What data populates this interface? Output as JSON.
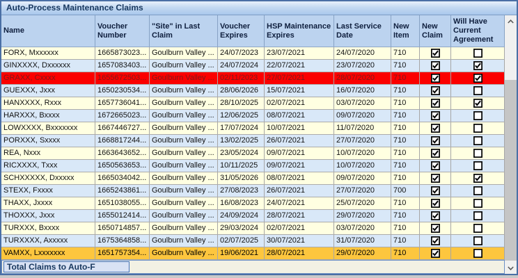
{
  "title": "Auto-Process Maintenance Claims",
  "colors": {
    "header_bg": "#BCD3EF",
    "row_yellow": "#FFFFE1",
    "row_blue": "#D9E8F8",
    "row_red": "#FB0000",
    "row_red_text": "#7E1A1A",
    "row_orange": "#FDC63E",
    "row_orange_text": "#000000"
  },
  "table": {
    "columns": [
      {
        "key": "name",
        "label": "Name"
      },
      {
        "key": "voucher_number",
        "label": "Voucher Number"
      },
      {
        "key": "site",
        "label": "\"Site\" in Last Claim"
      },
      {
        "key": "voucher_expires",
        "label": "Voucher Expires"
      },
      {
        "key": "hsp_expires",
        "label": "HSP Maintenance Expires"
      },
      {
        "key": "last_service",
        "label": "Last Service Date"
      },
      {
        "key": "new_item",
        "label": "New Item"
      },
      {
        "key": "new_claim",
        "label": "New Claim"
      },
      {
        "key": "will_have_agreement",
        "label": "Will Have Current Agreement"
      }
    ],
    "rows": [
      {
        "name": "FORX, Mxxxxxx",
        "voucher_number": "1665873023...",
        "site": "Goulburn Valley ...",
        "voucher_expires": "24/07/2023",
        "hsp_expires": "23/07/2021",
        "last_service": "24/07/2020",
        "new_item": "710",
        "new_claim": true,
        "will_have_agreement": false,
        "highlight": ""
      },
      {
        "name": "GINXXXX, Dxxxxxx",
        "voucher_number": "1657083403...",
        "site": "Goulburn Valley ...",
        "voucher_expires": "24/07/2024",
        "hsp_expires": "22/07/2021",
        "last_service": "23/07/2020",
        "new_item": "710",
        "new_claim": true,
        "will_have_agreement": true,
        "highlight": ""
      },
      {
        "name": "GRAXX, Cxxxx",
        "voucher_number": "1655672503...",
        "site": "Goulburn Valley ...",
        "voucher_expires": "02/11/2023",
        "hsp_expires": "27/07/2021",
        "last_service": "28/07/2020",
        "new_item": "710",
        "new_claim": true,
        "will_have_agreement": true,
        "highlight": "red"
      },
      {
        "name": "GUEXXX, Jxxx",
        "voucher_number": "1650230534...",
        "site": "Goulburn Valley ...",
        "voucher_expires": "28/06/2026",
        "hsp_expires": "15/07/2021",
        "last_service": "16/07/2020",
        "new_item": "710",
        "new_claim": true,
        "will_have_agreement": false,
        "highlight": ""
      },
      {
        "name": "HANXXXX, Rxxx",
        "voucher_number": "1657736041...",
        "site": "Goulburn Valley ...",
        "voucher_expires": "28/10/2025",
        "hsp_expires": "02/07/2021",
        "last_service": "03/07/2020",
        "new_item": "710",
        "new_claim": true,
        "will_have_agreement": true,
        "highlight": ""
      },
      {
        "name": "HARXXX, Bxxxx",
        "voucher_number": "1672665023...",
        "site": "Goulburn Valley ...",
        "voucher_expires": "12/06/2025",
        "hsp_expires": "08/07/2021",
        "last_service": "09/07/2020",
        "new_item": "710",
        "new_claim": true,
        "will_have_agreement": false,
        "highlight": ""
      },
      {
        "name": "LOWXXXX, Bxxxxxxx",
        "voucher_number": "1667446727...",
        "site": "Goulburn Valley ...",
        "voucher_expires": "17/07/2024",
        "hsp_expires": "10/07/2021",
        "last_service": "11/07/2020",
        "new_item": "710",
        "new_claim": true,
        "will_have_agreement": false,
        "highlight": ""
      },
      {
        "name": "PORXXX, Sxxxx",
        "voucher_number": "1668817244...",
        "site": "Goulburn Valley ...",
        "voucher_expires": "13/02/2025",
        "hsp_expires": "26/07/2021",
        "last_service": "27/07/2020",
        "new_item": "710",
        "new_claim": true,
        "will_have_agreement": false,
        "highlight": ""
      },
      {
        "name": "REA, Nxxx",
        "voucher_number": "1663643652...",
        "site": "Goulburn Valley ...",
        "voucher_expires": "23/05/2024",
        "hsp_expires": "09/07/2021",
        "last_service": "10/07/2020",
        "new_item": "710",
        "new_claim": true,
        "will_have_agreement": false,
        "highlight": ""
      },
      {
        "name": "RICXXXX, Txxx",
        "voucher_number": "1650563653...",
        "site": "Goulburn Valley ...",
        "voucher_expires": "10/11/2025",
        "hsp_expires": "09/07/2021",
        "last_service": "10/07/2020",
        "new_item": "710",
        "new_claim": true,
        "will_have_agreement": false,
        "highlight": ""
      },
      {
        "name": "SCHXXXXX, Dxxxxx",
        "voucher_number": "1665034042...",
        "site": "Goulburn Valley ...",
        "voucher_expires": "31/05/2026",
        "hsp_expires": "08/07/2021",
        "last_service": "09/07/2020",
        "new_item": "710",
        "new_claim": true,
        "will_have_agreement": true,
        "highlight": ""
      },
      {
        "name": "STEXX, Fxxxx",
        "voucher_number": "1665243861...",
        "site": "Goulburn Valley ...",
        "voucher_expires": "27/08/2023",
        "hsp_expires": "26/07/2021",
        "last_service": "27/07/2020",
        "new_item": "700",
        "new_claim": true,
        "will_have_agreement": false,
        "highlight": ""
      },
      {
        "name": "THAXX, Jxxxx",
        "voucher_number": "1651038055...",
        "site": "Goulburn Valley ...",
        "voucher_expires": "16/08/2023",
        "hsp_expires": "24/07/2021",
        "last_service": "25/07/2020",
        "new_item": "710",
        "new_claim": true,
        "will_have_agreement": false,
        "highlight": ""
      },
      {
        "name": "THOXXX, Jxxx",
        "voucher_number": "1655012414...",
        "site": "Goulburn Valley ...",
        "voucher_expires": "24/09/2024",
        "hsp_expires": "28/07/2021",
        "last_service": "29/07/2020",
        "new_item": "710",
        "new_claim": true,
        "will_have_agreement": false,
        "highlight": ""
      },
      {
        "name": "TURXXX, Bxxxx",
        "voucher_number": "1650714857...",
        "site": "Goulburn Valley ...",
        "voucher_expires": "29/03/2024",
        "hsp_expires": "02/07/2021",
        "last_service": "03/07/2020",
        "new_item": "710",
        "new_claim": true,
        "will_have_agreement": false,
        "highlight": ""
      },
      {
        "name": "TURXXXX, Axxxxx",
        "voucher_number": "1675364858...",
        "site": "Goulburn Valley ...",
        "voucher_expires": "02/07/2025",
        "hsp_expires": "30/07/2021",
        "last_service": "31/07/2020",
        "new_item": "710",
        "new_claim": true,
        "will_have_agreement": false,
        "highlight": ""
      },
      {
        "name": "VAMXX, Lxxxxxxx",
        "voucher_number": "1651757354...",
        "site": "Goulburn Valley ...",
        "voucher_expires": "19/06/2021",
        "hsp_expires": "28/07/2021",
        "last_service": "29/07/2020",
        "new_item": "710",
        "new_claim": true,
        "will_have_agreement": false,
        "highlight": "orange"
      }
    ]
  },
  "footer": {
    "total_label": "Total Claims to Auto-F"
  }
}
